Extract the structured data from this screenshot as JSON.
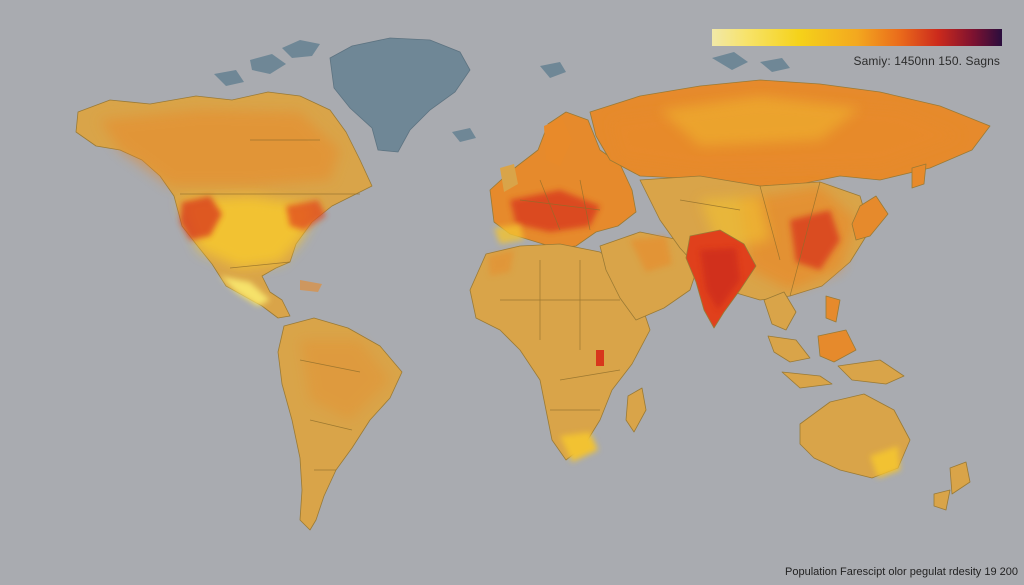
{
  "legend": {
    "label": "Samiy: 1450nn 150. Sagns",
    "colors": [
      "#f1e8a8",
      "#f7e36a",
      "#f5d21a",
      "#f3a81f",
      "#ea6a1b",
      "#cc2a1c",
      "#7e1230",
      "#2a0d3d"
    ]
  },
  "caption": "Population Farescipt olor pegulat rdesity 19 200",
  "palette": {
    "background": "#a9abb0",
    "land_low": "#d9a449",
    "land_mid": "#e68a2c",
    "land_high": "#d8361c",
    "ice": "#6f8796"
  }
}
